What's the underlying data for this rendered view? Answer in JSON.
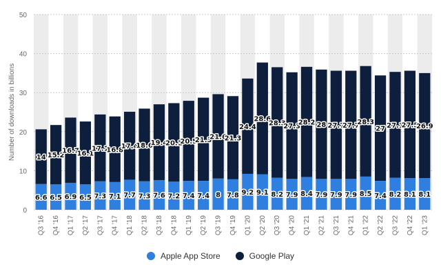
{
  "colors": {
    "apple": "#2f7fe0",
    "google": "#0d1f3c",
    "band": "#ececec",
    "grid": "#c8c8c8"
  },
  "chart_data": {
    "type": "bar",
    "stacked": true,
    "categories": [
      "Q3 '16",
      "Q4 '16",
      "Q1 '17",
      "Q2 '17",
      "Q3 '17",
      "Q4 '17",
      "Q1 '18",
      "Q2 '18",
      "Q3 '18",
      "Q4 '18",
      "Q1 '19",
      "Q2 '19",
      "Q3 '19",
      "Q4 '19",
      "Q1 '20",
      "Q2 '20",
      "Q3 '20",
      "Q4 '20",
      "Q1 '21",
      "Q2 '21",
      "Q3 '21",
      "Q4 '21",
      "Q1 '22",
      "Q2 '22",
      "Q3 '22",
      "Q4 '22",
      "Q1 '23"
    ],
    "series": [
      {
        "name": "Apple App Store",
        "values": [
          6.6,
          6.5,
          6.9,
          6.5,
          7.3,
          7.1,
          7.7,
          7.3,
          7.6,
          7.2,
          7.4,
          7.4,
          8,
          7.8,
          9.2,
          9.1,
          8.2,
          7.9,
          8.4,
          7.9,
          7.9,
          7.9,
          8.5,
          7.4,
          8.2,
          8.1,
          8.1
        ]
      },
      {
        "name": "Google Play",
        "values": [
          14,
          15.2,
          16.7,
          16.1,
          17.1,
          16.8,
          17.4,
          18.6,
          19.4,
          20.1,
          20.5,
          21.3,
          21.6,
          21.3,
          24.4,
          28.6,
          28.3,
          27.3,
          28.2,
          28,
          27.7,
          27.7,
          28.3,
          27,
          27.1,
          27.5,
          26.9
        ]
      }
    ],
    "title": "",
    "xlabel": "",
    "ylabel": "Number of downloads in billions",
    "ylim": [
      0,
      50
    ],
    "yticks": [
      0,
      10,
      20,
      30,
      40,
      50
    ],
    "grid": true,
    "legend": "bottom-center"
  }
}
